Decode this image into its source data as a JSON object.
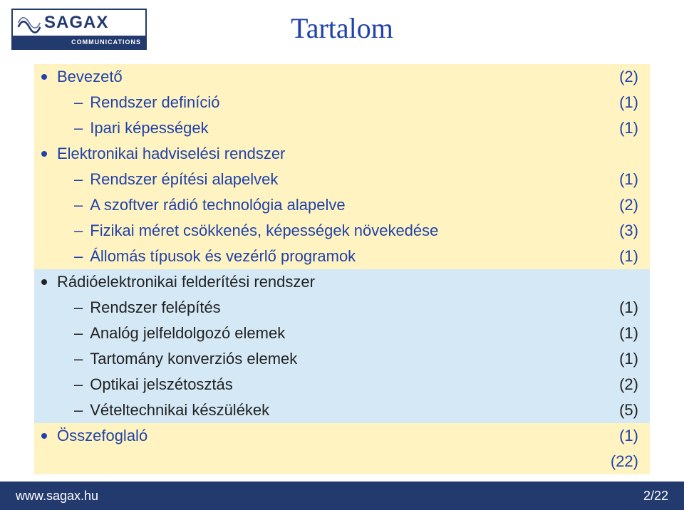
{
  "logo": {
    "brand": "SAGAX",
    "sub": "COMMUNICATIONS",
    "border_color": "#233a6f",
    "wave_color": "#233a6f"
  },
  "title": "Tartalom",
  "rows": [
    {
      "lvl": 0,
      "style": "blue-dot",
      "hl": "hl1",
      "label": "Bevezető",
      "count": "(2)"
    },
    {
      "lvl": 1,
      "style": "blue-dash",
      "hl": "hl1",
      "label": "Rendszer definíció",
      "count": "(1)"
    },
    {
      "lvl": 1,
      "style": "blue-dash",
      "hl": "hl1",
      "label": "Ipari képességek",
      "count": "(1)"
    },
    {
      "lvl": 0,
      "style": "blue-dot",
      "hl": "hl1",
      "label": "Elektronikai hadviselési rendszer",
      "count": ""
    },
    {
      "lvl": 1,
      "style": "blue-dash",
      "hl": "hl1",
      "label": "Rendszer építési alapelvek",
      "count": "(1)"
    },
    {
      "lvl": 1,
      "style": "blue-dash",
      "hl": "hl1",
      "label": "A szoftver rádió technológia alapelve",
      "count": "(2)"
    },
    {
      "lvl": 1,
      "style": "blue-dash",
      "hl": "hl1",
      "label": "Fizikai méret csökkenés, képességek növekedése",
      "count": "(3)"
    },
    {
      "lvl": 1,
      "style": "blue-dash",
      "hl": "hl1",
      "label": "Állomás típusok és vezérlő programok",
      "count": "(1)"
    },
    {
      "lvl": 0,
      "style": "black-dot",
      "hl": "hl2",
      "label": "Rádióelektronikai felderítési rendszer",
      "count": ""
    },
    {
      "lvl": 2,
      "style": "black-dash",
      "hl": "hl2",
      "label": "Rendszer felépítés",
      "count": "(1)"
    },
    {
      "lvl": 2,
      "style": "black-dash",
      "hl": "hl2",
      "label": "Analóg jelfeldolgozó elemek",
      "count": "(1)"
    },
    {
      "lvl": 2,
      "style": "black-dash",
      "hl": "hl2",
      "label": "Tartomány konverziós elemek",
      "count": "(1)"
    },
    {
      "lvl": 2,
      "style": "black-dash",
      "hl": "hl2",
      "label": "Optikai jelszétosztás",
      "count": "(2)"
    },
    {
      "lvl": 2,
      "style": "black-dash",
      "hl": "hl2",
      "label": "Vételtechnikai készülékek",
      "count": "(5)"
    },
    {
      "lvl": 0,
      "style": "blue-dot",
      "hl": "hl1",
      "label": "Összefoglaló",
      "count": "(1)"
    }
  ],
  "total": "(22)",
  "footer": {
    "url": "www.sagax.hu",
    "page": "2/22",
    "bg": "#233a6f"
  },
  "colors": {
    "title": "#2142a9",
    "blue_text": "#2142a9",
    "black_text": "#1a1a1a",
    "hl_yellow": "#fff3c1",
    "hl_blue": "#d4e8f6"
  }
}
